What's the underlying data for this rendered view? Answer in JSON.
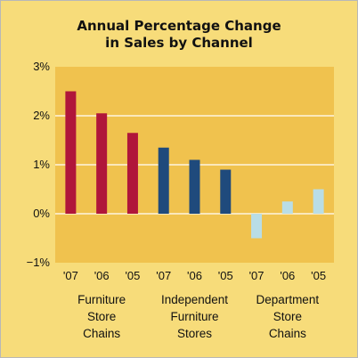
{
  "chart_data": {
    "type": "bar",
    "title": [
      "Annual Percentage Change",
      "in Sales by Channel"
    ],
    "ylim": [
      -1,
      3
    ],
    "yticks": [
      "3%",
      "2%",
      "1%",
      "0%",
      "−1%"
    ],
    "grid": true,
    "groups": [
      {
        "name": [
          "Furniture",
          "Store",
          "Chains"
        ],
        "color": "#b0163a",
        "categories": [
          "'07",
          "'06",
          "'05"
        ],
        "values": [
          2.5,
          2.05,
          1.65
        ]
      },
      {
        "name": [
          "Independent",
          "Furniture",
          "Stores"
        ],
        "color": "#1f4a7c",
        "categories": [
          "'07",
          "'06",
          "'05"
        ],
        "values": [
          1.35,
          1.1,
          0.9
        ]
      },
      {
        "name": [
          "Department",
          "Store",
          "Chains"
        ],
        "color": "#b9dde6",
        "categories": [
          "'07",
          "'06",
          "'05"
        ],
        "values": [
          -0.5,
          0.25,
          0.5
        ]
      }
    ],
    "colors": {
      "frame": "#f7dc7a",
      "plot": "#f0c24e",
      "grid": "#ffffff"
    }
  }
}
